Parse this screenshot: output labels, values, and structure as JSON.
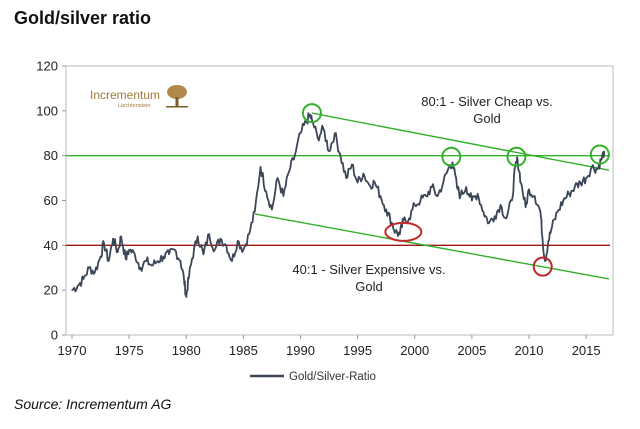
{
  "title": "Gold/silver ratio",
  "source": "Source: Incrementum AG",
  "logo": {
    "name": "Incrementum",
    "sub": "Liechtenstein",
    "icon": "oak-tree-icon",
    "color": "#9a7b3a"
  },
  "colors": {
    "series": "#3b4657",
    "level_80": "#33b02a",
    "level_40": "#a31515",
    "trend": "#33b02a",
    "green_circle": "#33b02a",
    "red_circle": "#c0282a",
    "frame": "#bbbbbb",
    "plot_bg": "#ffffff"
  },
  "annotations": {
    "top": [
      "80:1 - Silver Cheap vs.",
      "Gold"
    ],
    "bottom": [
      "40:1 - Silver Expensive vs.",
      "Gold"
    ]
  },
  "chart_data": {
    "type": "line",
    "xlim": [
      1970,
      2017
    ],
    "ylim": [
      0,
      120
    ],
    "x_ticks": [
      1970,
      1975,
      1980,
      1985,
      1990,
      1995,
      2000,
      2005,
      2010,
      2015
    ],
    "y_ticks": [
      0,
      20,
      40,
      60,
      80,
      100,
      120
    ],
    "grid": false,
    "legend_position": "bottom",
    "series": [
      {
        "name": "Gold/Silver-Ratio",
        "x": [
          1970.0,
          1970.5,
          1971.0,
          1971.5,
          1972.0,
          1972.5,
          1972.8,
          1973.2,
          1973.6,
          1974.0,
          1974.3,
          1974.7,
          1975.0,
          1975.5,
          1976.0,
          1976.5,
          1977.0,
          1977.5,
          1978.0,
          1978.5,
          1979.0,
          1979.5,
          1979.8,
          1980.0,
          1980.2,
          1980.5,
          1981.0,
          1981.5,
          1982.0,
          1982.5,
          1983.0,
          1983.5,
          1984.0,
          1984.5,
          1985.0,
          1985.5,
          1986.0,
          1986.5,
          1987.0,
          1987.5,
          1988.0,
          1988.5,
          1989.0,
          1989.5,
          1990.0,
          1990.5,
          1990.8,
          1991.0,
          1991.5,
          1992.0,
          1992.5,
          1993.0,
          1993.5,
          1994.0,
          1994.5,
          1995.0,
          1995.5,
          1996.0,
          1996.5,
          1997.0,
          1997.5,
          1998.0,
          1998.3,
          1998.7,
          1999.0,
          1999.5,
          2000.0,
          2000.5,
          2001.0,
          2001.5,
          2002.0,
          2002.5,
          2003.0,
          2003.3,
          2003.7,
          2004.0,
          2004.5,
          2005.0,
          2005.5,
          2006.0,
          2006.5,
          2007.0,
          2007.5,
          2008.0,
          2008.5,
          2008.8,
          2009.0,
          2009.3,
          2009.7,
          2010.0,
          2010.5,
          2011.0,
          2011.2,
          2011.4,
          2011.7,
          2012.0,
          2012.5,
          2013.0,
          2013.5,
          2014.0,
          2014.5,
          2015.0,
          2015.5,
          2016.0,
          2016.3,
          2016.6
        ],
        "values": [
          20,
          22,
          25,
          30,
          28,
          35,
          41,
          33,
          43,
          37,
          44,
          34,
          38,
          36,
          30,
          33,
          31,
          33,
          35,
          36,
          38,
          33,
          25,
          17,
          25,
          34,
          44,
          36,
          45,
          38,
          43,
          40,
          33,
          42,
          38,
          45,
          55,
          75,
          64,
          56,
          70,
          62,
          73,
          80,
          90,
          95,
          98,
          96,
          88,
          92,
          82,
          90,
          80,
          70,
          76,
          68,
          72,
          67,
          68,
          62,
          56,
          50,
          46,
          45,
          51,
          52,
          58,
          60,
          62,
          66,
          62,
          68,
          75,
          77,
          66,
          62,
          66,
          60,
          63,
          55,
          50,
          53,
          58,
          52,
          60,
          75,
          78,
          68,
          57,
          65,
          62,
          55,
          42,
          33,
          42,
          48,
          55,
          60,
          63,
          66,
          68,
          70,
          75,
          74,
          78,
          82
        ]
      }
    ],
    "reference_lines": [
      {
        "name": "80:1",
        "y": 80
      },
      {
        "name": "40:1",
        "y": 40
      }
    ],
    "trend_lines": [
      {
        "x": [
          1991.0,
          2017.0
        ],
        "y": [
          99.0,
          73.5
        ]
      },
      {
        "x": [
          1986.0,
          2017.0
        ],
        "y": [
          54.0,
          25.0
        ]
      }
    ],
    "highlight_circles": [
      {
        "x": 1991.0,
        "y": 99.0,
        "kind": "green"
      },
      {
        "x": 2003.2,
        "y": 79.5,
        "kind": "green"
      },
      {
        "x": 2008.9,
        "y": 79.5,
        "kind": "green"
      },
      {
        "x": 2016.2,
        "y": 80.5,
        "kind": "green"
      },
      {
        "x": 1999.0,
        "y": 46.0,
        "kind": "red-ellipse"
      },
      {
        "x": 2011.2,
        "y": 30.5,
        "kind": "red"
      }
    ]
  }
}
